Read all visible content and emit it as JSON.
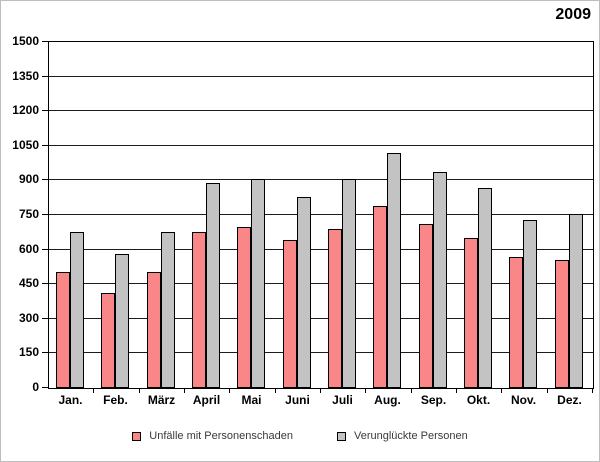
{
  "window": {
    "title": "2009"
  },
  "chart_data": {
    "type": "bar",
    "title": "2009",
    "categories": [
      "Jan.",
      "Feb.",
      "März",
      "April",
      "Mai",
      "Juni",
      "Juli",
      "Aug.",
      "Sep.",
      "Okt.",
      "Nov.",
      "Dez."
    ],
    "series": [
      {
        "name": "Unfälle mit Personenschaden",
        "color": "#FA8787",
        "values": [
          505,
          410,
          505,
          675,
          700,
          640,
          690,
          790,
          710,
          650,
          570,
          555
        ]
      },
      {
        "name": "Verunglückte Personen",
        "color": "#C3C3C3",
        "values": [
          675,
          580,
          675,
          890,
          905,
          830,
          905,
          1020,
          935,
          865,
          730,
          755
        ]
      }
    ],
    "xlabel": "",
    "ylabel": "",
    "ylim": [
      0,
      1500
    ],
    "ytick_step": 150,
    "grid": true,
    "legend_position": "bottom",
    "bar_outline_color": "#000000",
    "gridline_color": "#1c1c1c"
  }
}
